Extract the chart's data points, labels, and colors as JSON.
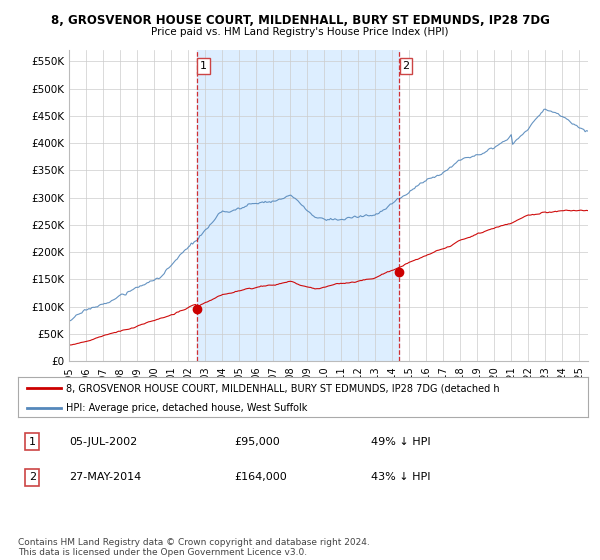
{
  "title": "8, GROSVENOR HOUSE COURT, MILDENHALL, BURY ST EDMUNDS, IP28 7DG",
  "subtitle": "Price paid vs. HM Land Registry's House Price Index (HPI)",
  "ylabel_ticks": [
    "£0",
    "£50K",
    "£100K",
    "£150K",
    "£200K",
    "£250K",
    "£300K",
    "£350K",
    "£400K",
    "£450K",
    "£500K",
    "£550K"
  ],
  "ytick_values": [
    0,
    50000,
    100000,
    150000,
    200000,
    250000,
    300000,
    350000,
    400000,
    450000,
    500000,
    550000
  ],
  "ylim": [
    0,
    570000
  ],
  "xlim_start": 1995.0,
  "xlim_end": 2025.5,
  "sale1_date": 2002.51,
  "sale1_price": 95000,
  "sale1_label": "05-JUL-2002",
  "sale1_price_label": "£95,000",
  "sale1_hpi_label": "49% ↓ HPI",
  "sale2_date": 2014.4,
  "sale2_price": 164000,
  "sale2_label": "27-MAY-2014",
  "sale2_price_label": "£164,000",
  "sale2_hpi_label": "43% ↓ HPI",
  "legend_line1": "8, GROSVENOR HOUSE COURT, MILDENHALL, BURY ST EDMUNDS, IP28 7DG (detached h",
  "legend_line2": "HPI: Average price, detached house, West Suffolk",
  "copyright": "Contains HM Land Registry data © Crown copyright and database right 2024.\nThis data is licensed under the Open Government Licence v3.0.",
  "red_color": "#cc0000",
  "blue_color": "#5588bb",
  "fill_color": "#ddeeff",
  "bg_color": "#ffffff",
  "grid_color": "#cccccc"
}
